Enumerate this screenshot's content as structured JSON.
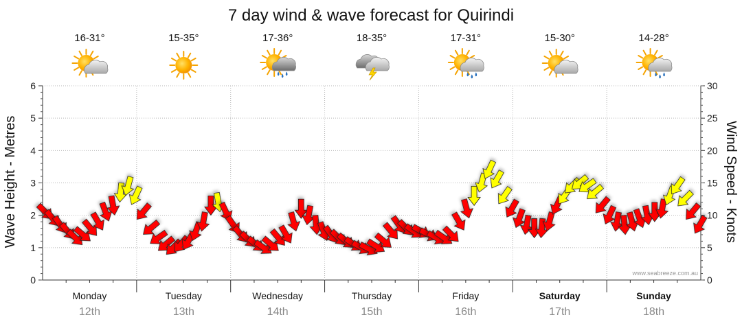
{
  "chart_data": {
    "type": "forecast",
    "title": "7 day wind & wave forecast for Quirindi",
    "left_axis": {
      "label": "Wave Height - Metres",
      "range": [
        0,
        6
      ],
      "ticks": [
        0,
        1,
        2,
        3,
        4,
        5,
        6
      ]
    },
    "right_axis": {
      "label": "Wind Speed - Knots",
      "range": [
        0,
        30
      ],
      "ticks": [
        0,
        5,
        10,
        15,
        20,
        25,
        30
      ]
    },
    "days": [
      {
        "day": "Monday",
        "date": "12th",
        "temp": "16-31°",
        "weather_icon": "partly-cloudy-icon",
        "bold": false
      },
      {
        "day": "Tuesday",
        "date": "13th",
        "temp": "15-35°",
        "weather_icon": "sunny-icon",
        "bold": false
      },
      {
        "day": "Wednesday",
        "date": "14th",
        "temp": "17-36°",
        "weather_icon": "rain-icon",
        "bold": false
      },
      {
        "day": "Thursday",
        "date": "15th",
        "temp": "18-35°",
        "weather_icon": "thunderstorm-icon",
        "bold": false
      },
      {
        "day": "Friday",
        "date": "16th",
        "temp": "17-31°",
        "weather_icon": "showers-icon",
        "bold": false
      },
      {
        "day": "Saturday",
        "date": "17th",
        "temp": "15-30°",
        "weather_icon": "partly-cloudy-icon",
        "bold": true
      },
      {
        "day": "Sunday",
        "date": "18th",
        "temp": "14-28°",
        "weather_icon": "showers-icon",
        "bold": true
      }
    ],
    "wind_series": {
      "x_days": [
        0.0,
        0.08,
        0.16,
        0.24,
        0.32,
        0.4,
        0.48,
        0.56,
        0.64,
        0.72,
        0.8,
        0.88,
        0.96,
        1.04,
        1.12,
        1.2,
        1.28,
        1.36,
        1.44,
        1.52,
        1.6,
        1.68,
        1.76,
        1.84,
        1.92,
        2.0,
        2.08,
        2.16,
        2.24,
        2.32,
        2.4,
        2.48,
        2.56,
        2.64,
        2.72,
        2.8,
        2.88,
        2.96,
        3.04,
        3.12,
        3.2,
        3.28,
        3.36,
        3.44,
        3.52,
        3.6,
        3.68,
        3.76,
        3.84,
        3.92,
        4.0,
        4.08,
        4.16,
        4.24,
        4.32,
        4.4,
        4.48,
        4.56,
        4.64,
        4.72,
        4.8,
        4.88,
        4.96,
        5.04,
        5.12,
        5.2,
        5.28,
        5.36,
        5.44,
        5.52,
        5.6,
        5.68,
        5.76,
        5.84,
        5.92,
        6.0,
        6.08,
        6.16,
        6.24,
        6.32,
        6.4,
        6.48,
        6.56,
        6.64,
        6.72,
        6.8,
        6.88,
        6.96
      ],
      "knots": [
        10.5,
        9.5,
        8.5,
        7.5,
        6.5,
        7,
        8,
        9,
        10.5,
        11.5,
        13.5,
        14.5,
        13,
        10.5,
        8,
        6.5,
        5.5,
        5,
        5.5,
        6,
        7.5,
        9,
        11.5,
        12,
        10.5,
        8.5,
        7,
        6.2,
        5.5,
        5,
        5.5,
        6.5,
        7,
        9,
        11,
        10,
        8.5,
        7.5,
        7,
        6.5,
        6,
        5.5,
        5,
        4.8,
        5.2,
        6,
        7.5,
        8.5,
        8,
        7.5,
        7.5,
        7,
        6.5,
        6.5,
        7,
        9,
        11,
        13,
        15,
        17,
        15.5,
        13,
        11,
        9.5,
        8.5,
        8,
        8,
        9,
        11.5,
        13,
        14.5,
        15,
        14.5,
        13.5,
        11.5,
        10,
        9,
        8.5,
        9,
        9.5,
        10,
        10.5,
        11,
        13,
        14.5,
        12.5,
        10.5,
        8.5
      ],
      "direction_deg": [
        135,
        140,
        145,
        140,
        135,
        130,
        140,
        150,
        160,
        170,
        185,
        195,
        205,
        220,
        230,
        235,
        230,
        225,
        220,
        210,
        200,
        190,
        180,
        170,
        155,
        145,
        140,
        135,
        130,
        125,
        130,
        140,
        150,
        165,
        180,
        190,
        175,
        160,
        145,
        135,
        130,
        125,
        120,
        118,
        122,
        130,
        140,
        145,
        135,
        125,
        120,
        118,
        120,
        125,
        135,
        150,
        165,
        180,
        195,
        205,
        210,
        215,
        210,
        200,
        190,
        180,
        185,
        195,
        205,
        215,
        225,
        230,
        235,
        230,
        220,
        205,
        190,
        175,
        165,
        160,
        170,
        180,
        190,
        200,
        215,
        225,
        220,
        210
      ],
      "color_threshold_knots": 12,
      "colors": {
        "below": "#ff0000",
        "above": "#ffff00"
      }
    },
    "credit": "www.seabreeze.com.au"
  }
}
